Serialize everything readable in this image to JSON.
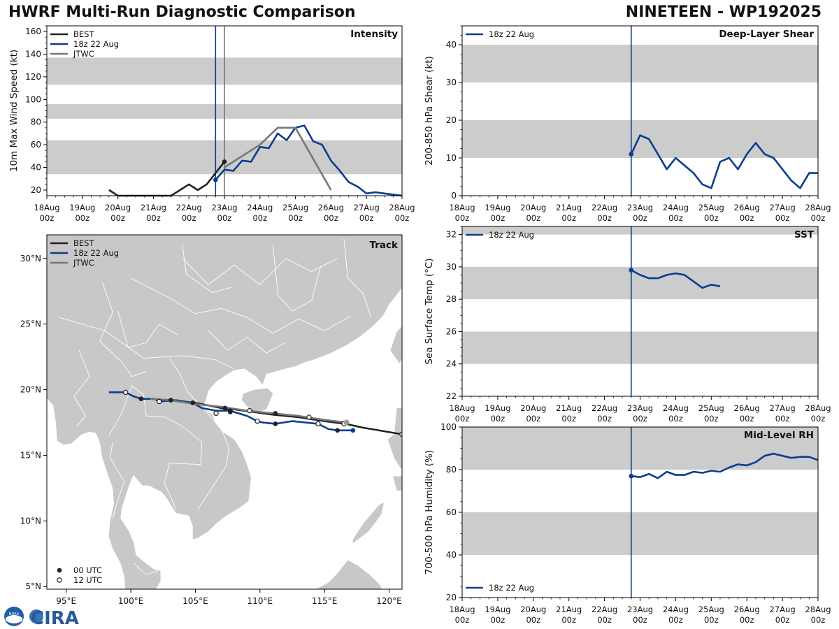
{
  "header": {
    "title_left": "HWRF Multi-Run Diagnostic Comparison",
    "title_right": "NINETEEN - WP192025"
  },
  "logo": {
    "text": "CIRA",
    "seal_text": "NOAA"
  },
  "colors": {
    "best": "#222222",
    "run": "#0b3d91",
    "jtwc": "#777777",
    "band": "#cccccc",
    "land": "#c8c8c8"
  },
  "time_axis": {
    "ticks": [
      0,
      1,
      2,
      3,
      4,
      5,
      6,
      7,
      8,
      9,
      10
    ],
    "labels": [
      [
        "18Aug",
        "00z"
      ],
      [
        "19Aug",
        "00z"
      ],
      [
        "20Aug",
        "00z"
      ],
      [
        "21Aug",
        "00z"
      ],
      [
        "22Aug",
        "00z"
      ],
      [
        "23Aug",
        "00z"
      ],
      [
        "24Aug",
        "00z"
      ],
      [
        "25Aug",
        "00z"
      ],
      [
        "26Aug",
        "00z"
      ],
      [
        "27Aug",
        "00z"
      ],
      [
        "28Aug",
        "00z"
      ]
    ],
    "init_time": 4.75,
    "jtwc_time": 5.0
  },
  "chart_data": [
    {
      "id": "intensity",
      "type": "line",
      "title": "Intensity",
      "ylabel": "10m Max Wind Speed (kt)",
      "xlim": [
        0,
        10
      ],
      "ylim": [
        15,
        165
      ],
      "yticks": [
        20,
        40,
        60,
        80,
        100,
        120,
        140,
        160
      ],
      "bands": [
        [
          34,
          64
        ],
        [
          83,
          96
        ],
        [
          113,
          137
        ]
      ],
      "legend": [
        "BEST",
        "18z 22 Aug",
        "JTWC"
      ],
      "series": [
        {
          "name": "BEST",
          "color": "#222222",
          "x": [
            1.75,
            2.0,
            2.25,
            2.5,
            2.75,
            3.0,
            3.25,
            3.5,
            3.75,
            4.0,
            4.25,
            4.5,
            4.75,
            5.0
          ],
          "y": [
            20,
            15,
            15,
            15,
            15,
            15,
            15,
            15,
            20,
            25,
            20,
            25,
            35,
            45
          ],
          "end_marker": true
        },
        {
          "name": "18z 22 Aug",
          "color": "#0b3d91",
          "x": [
            4.75,
            5.0,
            5.25,
            5.5,
            5.75,
            6.0,
            6.25,
            6.5,
            6.75,
            7.0,
            7.25,
            7.5,
            7.75,
            8.0,
            8.25,
            8.5,
            8.75,
            9.0,
            9.25,
            9.5,
            9.75,
            10.0
          ],
          "y": [
            29,
            38,
            37,
            46,
            45,
            58,
            57,
            70,
            64,
            75,
            77,
            63,
            60,
            46,
            37,
            27,
            23,
            17,
            18,
            17,
            16,
            15
          ],
          "start_marker": true
        },
        {
          "name": "JTWC",
          "color": "#777777",
          "x": [
            5.0,
            5.5,
            6.0,
            6.5,
            7.0,
            8.0
          ],
          "y": [
            40,
            50,
            60,
            75,
            75,
            20
          ]
        }
      ]
    },
    {
      "id": "shear",
      "type": "line",
      "title": "Deep-Layer Shear",
      "ylabel": "200-850 hPa Shear (kt)",
      "xlim": [
        0,
        10
      ],
      "ylim": [
        0,
        45
      ],
      "yticks": [
        0,
        10,
        20,
        30,
        40
      ],
      "bands": [
        [
          10,
          20
        ],
        [
          30,
          40
        ]
      ],
      "legend": [
        "18z 22 Aug"
      ],
      "series": [
        {
          "name": "18z 22 Aug",
          "color": "#0b3d91",
          "x": [
            4.75,
            5.0,
            5.25,
            5.5,
            5.75,
            6.0,
            6.25,
            6.5,
            6.75,
            7.0,
            7.25,
            7.5,
            7.75,
            8.0,
            8.25,
            8.5,
            8.75,
            9.0,
            9.25,
            9.5,
            9.75,
            10.0
          ],
          "y": [
            11,
            16,
            15,
            11,
            7,
            10,
            8,
            6,
            3,
            2,
            9,
            10,
            7,
            11,
            14,
            11,
            10,
            7,
            4,
            2,
            6,
            6
          ],
          "start_marker": true
        }
      ]
    },
    {
      "id": "sst",
      "type": "line",
      "title": "SST",
      "ylabel": "Sea Surface Temp (°C)",
      "xlim": [
        0,
        10
      ],
      "ylim": [
        22,
        32.5
      ],
      "yticks": [
        22,
        24,
        26,
        28,
        30,
        32
      ],
      "bands": [
        [
          24,
          26
        ],
        [
          28,
          30
        ],
        [
          32,
          32.5
        ]
      ],
      "legend": [
        "18z 22 Aug"
      ],
      "series": [
        {
          "name": "18z 22 Aug",
          "color": "#0b3d91",
          "x": [
            4.75,
            5.0,
            5.25,
            5.5,
            5.75,
            6.0,
            6.25,
            6.5,
            6.75,
            7.0,
            7.25
          ],
          "y": [
            29.8,
            29.5,
            29.3,
            29.3,
            29.5,
            29.6,
            29.5,
            29.1,
            28.7,
            28.9,
            28.8
          ],
          "start_marker": true
        }
      ]
    },
    {
      "id": "rh",
      "type": "line",
      "title": "Mid-Level RH",
      "ylabel": "700-500 hPa Humidity (%)",
      "xlim": [
        0,
        10
      ],
      "ylim": [
        20,
        100
      ],
      "yticks": [
        20,
        40,
        60,
        80,
        100
      ],
      "bands": [
        [
          40,
          60
        ],
        [
          80,
          100
        ]
      ],
      "legend": [
        "18z 22 Aug"
      ],
      "series": [
        {
          "name": "18z 22 Aug",
          "color": "#0b3d91",
          "x": [
            4.75,
            5.0,
            5.25,
            5.5,
            5.75,
            6.0,
            6.25,
            6.5,
            6.75,
            7.0,
            7.25,
            7.5,
            7.75,
            8.0,
            8.25,
            8.5,
            8.75,
            9.0,
            9.25,
            9.5,
            9.75,
            10.0
          ],
          "y": [
            77,
            76.5,
            78,
            76,
            79,
            77.5,
            77.5,
            79,
            78.5,
            79.5,
            79,
            81,
            82.5,
            82,
            83.5,
            86.5,
            87.5,
            86.5,
            85.5,
            86,
            86,
            84.5
          ],
          "start_marker": true
        }
      ]
    },
    {
      "id": "track",
      "type": "scatter",
      "title": "Track",
      "xlim": [
        93.5,
        121.0
      ],
      "ylim": [
        4.8,
        31.8
      ],
      "xticks": [
        95,
        100,
        105,
        110,
        115,
        120
      ],
      "xtick_labels": [
        "95°E",
        "100°E",
        "105°E",
        "110°E",
        "115°E",
        "120°E"
      ],
      "yticks": [
        5,
        10,
        15,
        20,
        25,
        30
      ],
      "ytick_labels": [
        "5°N",
        "10°N",
        "15°N",
        "20°N",
        "25°N",
        "30°N"
      ],
      "legend": [
        "BEST",
        "18z 22 Aug",
        "JTWC"
      ],
      "marker_legend": [
        "00 UTC",
        "12 UTC"
      ],
      "series": [
        {
          "name": "BEST",
          "color": "#222222",
          "lon": [
            121.0,
            118.0,
            116.6,
            115.0,
            113.0,
            111.0,
            109.5,
            108.0,
            107.0,
            105.0,
            103.0,
            101.5
          ],
          "lat": [
            16.6,
            17.1,
            17.4,
            17.6,
            17.9,
            18.1,
            18.3,
            18.5,
            18.6,
            19.0,
            19.2,
            19.3
          ]
        },
        {
          "name": "18z 22 Aug",
          "color": "#0b3d91",
          "lon": [
            117.2,
            116.0,
            115.3,
            114.5,
            113.5,
            112.5,
            111.2,
            110.2,
            109.8,
            109.0,
            108.0,
            107.7,
            106.6,
            105.5,
            104.8,
            103.5,
            102.2,
            101.8,
            100.8,
            100.2,
            99.6,
            98.3
          ],
          "lat": [
            16.9,
            16.9,
            17.0,
            17.4,
            17.5,
            17.6,
            17.4,
            17.5,
            17.6,
            18.0,
            18.3,
            18.4,
            18.4,
            18.6,
            19.0,
            19.2,
            19.1,
            19.3,
            19.3,
            19.5,
            19.8,
            19.8
          ],
          "markers00": [
            [
              117.2,
              16.9
            ],
            [
              111.2,
              17.4
            ],
            [
              107.7,
              18.4
            ],
            [
              103.1,
              19.2
            ],
            [
              100.8,
              19.3
            ]
          ],
          "markers12": [
            [
              114.5,
              17.4
            ],
            [
              109.8,
              17.6
            ],
            [
              106.6,
              18.2
            ],
            [
              102.2,
              19.1
            ],
            [
              99.6,
              19.8
            ]
          ]
        },
        {
          "name": "JTWC",
          "color": "#777777",
          "lon": [
            116.7,
            115.0,
            113.0,
            111.0,
            109.0,
            107.0,
            105.0,
            103.0,
            101.5
          ],
          "lat": [
            17.5,
            17.7,
            18.0,
            18.2,
            18.4,
            18.7,
            18.9,
            19.2,
            19.3
          ]
        }
      ],
      "best_markers00": [
        [
          116.0,
          16.9
        ],
        [
          111.2,
          18.2
        ],
        [
          107.3,
          18.6
        ],
        [
          104.8,
          19.0
        ],
        [
          103.1,
          19.2
        ],
        [
          100.8,
          19.3
        ],
        [
          107.7,
          18.3
        ]
      ],
      "best_markers12": [
        [
          121.0,
          16.6
        ],
        [
          116.5,
          17.4
        ],
        [
          113.8,
          17.9
        ],
        [
          109.2,
          18.4
        ]
      ]
    }
  ]
}
